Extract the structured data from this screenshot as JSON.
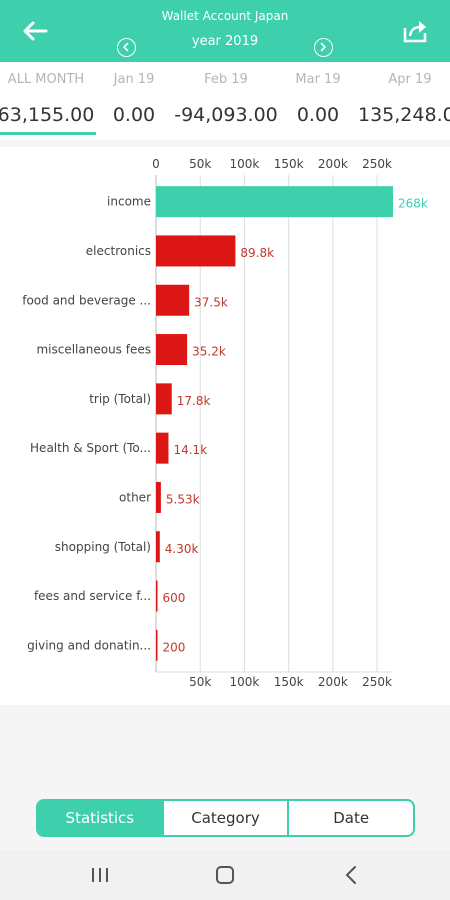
{
  "header": {
    "title": "Wallet Account Japan",
    "period": "year 2019",
    "back_icon": "arrow-left-icon",
    "share_icon": "share-icon",
    "prev_icon": "chevron-left-circle-icon",
    "next_icon": "chevron-right-circle-icon"
  },
  "months": [
    {
      "label": "ALL MONTH",
      "value": "63,155.00"
    },
    {
      "label": "Jan 19",
      "value": "0.00"
    },
    {
      "label": "Feb 19",
      "value": "-94,093.00"
    },
    {
      "label": "Mar 19",
      "value": "0.00"
    },
    {
      "label": "Apr 19",
      "value": "135,248.0"
    }
  ],
  "chart_data": {
    "type": "bar",
    "orientation": "horizontal",
    "categories": [
      "income",
      "electronics",
      "food and beverage ...",
      "miscellaneous fees",
      "trip (Total)",
      "Health & Sport (To...",
      "other",
      "shopping (Total)",
      "fees and service f...",
      "giving and donatin..."
    ],
    "values": [
      268000,
      89800,
      37500,
      35200,
      17800,
      14100,
      5530,
      4300,
      600,
      200
    ],
    "value_labels": [
      "268k",
      "89.8k",
      "37.5k",
      "35.2k",
      "17.8k",
      "14.1k",
      "5.53k",
      "4.30k",
      "600",
      "200"
    ],
    "colors": [
      "#3ecfad",
      "#dd1616",
      "#dd1616",
      "#dd1616",
      "#dd1616",
      "#dd1616",
      "#dd1616",
      "#dd1616",
      "#dd1616",
      "#dd1616"
    ],
    "ticks": [
      "0",
      "50k",
      "100k",
      "150k",
      "200k",
      "250k"
    ],
    "bottom_ticks": [
      "50k",
      "100k",
      "150k",
      "200k",
      "250k"
    ],
    "xlim": [
      0,
      268000
    ],
    "grid": true
  },
  "tabs": [
    {
      "label": "Statistics",
      "active": true
    },
    {
      "label": "Category",
      "active": false
    },
    {
      "label": "Date",
      "active": false
    }
  ],
  "system_nav": {
    "recents_icon": "recents-icon",
    "home_icon": "home-icon",
    "back_icon": "back-chevron-icon"
  }
}
